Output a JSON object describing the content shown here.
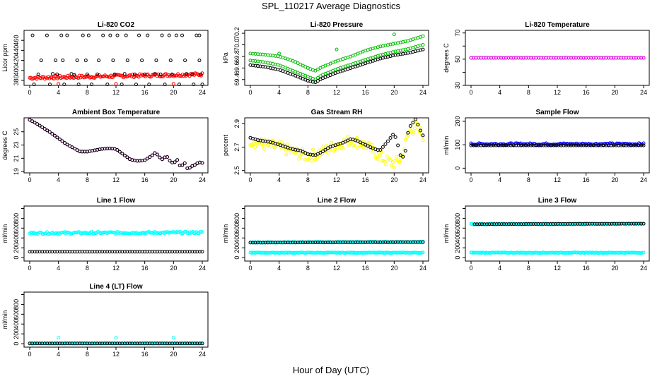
{
  "title": "SPL_110217  Average Diagnostics",
  "xlabel": "Hour of Day (UTC)",
  "chart_data": [
    {
      "type": "scatter",
      "title": "Li-820 CO2",
      "ylabel": "Licor ppm",
      "xlim": [
        0,
        24
      ],
      "ylim": [
        370,
        480
      ],
      "xticks": [
        0,
        4,
        8,
        12,
        16,
        20,
        24
      ],
      "yticks": [
        380,
        400,
        420,
        440,
        460
      ],
      "ytick_labels": [
        "380",
        "400",
        "420",
        "440",
        "460"
      ],
      "series": [
        {
          "name": "line1",
          "color": "#ff0000",
          "kind": "band",
          "x": [
            0,
            24
          ],
          "y": [
            385,
            392
          ],
          "jitter": 3
        },
        {
          "name": "line3-high",
          "color": "#000000",
          "kind": "sparse",
          "x": [
            0.4,
            2.4,
            4.4,
            5.2,
            7.4,
            8.2,
            10.2,
            11.2,
            12.2,
            13.4,
            15.2,
            16.4,
            18.4,
            19.4,
            20.4,
            21.2,
            23.2,
            23.6
          ],
          "y": [
            470,
            470,
            470,
            470,
            470,
            470,
            470,
            470,
            470,
            470,
            470,
            470,
            470,
            470,
            470,
            470,
            470,
            470
          ]
        },
        {
          "name": "line3-mid",
          "color": "#000000",
          "kind": "sparse",
          "x": [
            1.6,
            3.6,
            4.6,
            6.6,
            7.8,
            9.6,
            11.6,
            13.6,
            15.6,
            17.6,
            19.6,
            21.6,
            23.6
          ],
          "y": [
            420,
            420,
            420,
            420,
            420,
            420,
            420,
            420,
            420,
            420,
            420,
            420,
            420
          ]
        },
        {
          "name": "line3-low",
          "color": "#000000",
          "kind": "sparse",
          "x": [
            1.2,
            3.2,
            3.8,
            5.8,
            6.2,
            8.0,
            9.4,
            11.8,
            13.2,
            14.6,
            16.0,
            17.4,
            18.2,
            19.8,
            21.8,
            22.6,
            23.8
          ],
          "y": [
            392,
            393,
            392,
            393,
            391,
            392,
            392,
            392,
            393,
            392,
            392,
            393,
            392,
            392,
            393,
            392,
            392
          ]
        },
        {
          "name": "line4-bottom",
          "color": "#000000",
          "kind": "sparse",
          "x": [
            0.6,
            2.8,
            4.8,
            6.8,
            8.6,
            10.8,
            12.8,
            14.8,
            16.6,
            18.8,
            20.8,
            22.8,
            24
          ],
          "y": [
            372,
            372,
            372,
            372,
            372,
            372,
            372,
            372,
            372,
            372,
            372,
            372,
            372
          ]
        },
        {
          "name": "line4-red",
          "color": "#ff0000",
          "kind": "sparse",
          "x": [
            4.0,
            12.0,
            20.0
          ],
          "y": [
            373,
            373,
            373
          ]
        }
      ]
    },
    {
      "type": "scatter",
      "title": "Li-820 Pressure",
      "ylabel": "kPa",
      "xlim": [
        0,
        24
      ],
      "ylim": [
        69.3,
        70.25
      ],
      "xticks": [
        0,
        4,
        8,
        12,
        16,
        20,
        24
      ],
      "yticks": [
        69.4,
        69.6,
        69.8,
        70.0,
        70.2
      ],
      "ytick_labels": [
        "69.4",
        "69.6",
        "69.8",
        "70.0",
        "70.2"
      ],
      "series": [
        {
          "name": "upper",
          "color": "#00bb00",
          "kind": "curve",
          "x": [
            0,
            2,
            4,
            6,
            8,
            9,
            10,
            12,
            14,
            16,
            18,
            20,
            22,
            24
          ],
          "y": [
            69.85,
            69.83,
            69.8,
            69.72,
            69.6,
            69.55,
            69.62,
            69.72,
            69.8,
            69.9,
            69.97,
            70.02,
            70.07,
            70.15
          ]
        },
        {
          "name": "middle",
          "color": "#00bb00",
          "kind": "curve",
          "x": [
            0,
            2,
            4,
            6,
            8,
            9,
            10,
            12,
            14,
            16,
            18,
            20,
            22,
            24
          ],
          "y": [
            69.73,
            69.7,
            69.65,
            69.55,
            69.45,
            69.4,
            69.48,
            69.58,
            69.66,
            69.74,
            69.82,
            69.88,
            69.93,
            70.0
          ]
        },
        {
          "name": "lower",
          "color": "#000000",
          "kind": "curve",
          "x": [
            0,
            2,
            4,
            6,
            8,
            9,
            10,
            12,
            14,
            16,
            18,
            20,
            22,
            24
          ],
          "y": [
            69.65,
            69.62,
            69.57,
            69.48,
            69.38,
            69.35,
            69.42,
            69.52,
            69.6,
            69.68,
            69.76,
            69.82,
            69.86,
            69.92
          ]
        },
        {
          "name": "outliers",
          "color": "#00bb00",
          "kind": "sparse",
          "x": [
            4.0,
            12.0,
            20.0
          ],
          "y": [
            69.85,
            69.92,
            70.18
          ]
        }
      ]
    },
    {
      "type": "scatter",
      "title": "Li-820 Temperature",
      "ylabel": "degrees C",
      "xlim": [
        0,
        24
      ],
      "ylim": [
        30,
        72
      ],
      "xticks": [
        0,
        4,
        8,
        12,
        16,
        20,
        24
      ],
      "yticks": [
        30,
        40,
        50,
        60,
        70
      ],
      "ytick_labels": [
        "30",
        "",
        "50",
        "",
        "70"
      ],
      "series": [
        {
          "name": "black",
          "color": "#000000",
          "kind": "curve",
          "x": [
            0,
            24
          ],
          "y": [
            51,
            51
          ]
        },
        {
          "name": "magenta",
          "color": "#ff00ff",
          "kind": "curve",
          "x": [
            0,
            24
          ],
          "y": [
            51,
            51
          ]
        }
      ]
    },
    {
      "type": "scatter",
      "title": "Ambient Box Temperature",
      "ylabel": "degrees C",
      "xlim": [
        0,
        24
      ],
      "ylim": [
        18.8,
        27.1
      ],
      "xticks": [
        0,
        4,
        8,
        12,
        16,
        20,
        24
      ],
      "yticks": [
        19,
        21,
        23,
        25
      ],
      "ytick_labels": [
        "19",
        "21",
        "23",
        "25"
      ],
      "series": [
        {
          "name": "magenta",
          "color": "#ff00ff",
          "kind": "curve",
          "x": [
            0,
            1,
            2,
            3,
            4,
            5,
            6,
            7,
            8,
            9,
            10,
            11,
            12,
            13,
            14,
            15,
            16,
            17,
            17.5,
            18,
            18.5,
            19,
            19.5,
            20,
            20.5,
            21,
            21.5,
            22,
            22.5,
            23,
            23.5,
            24
          ],
          "y": [
            26.8,
            26.2,
            25.5,
            24.8,
            24.0,
            23.2,
            22.6,
            22.0,
            22.0,
            22.2,
            22.4,
            22.5,
            22.4,
            21.6,
            20.8,
            20.6,
            20.7,
            21.4,
            21.9,
            21.2,
            20.8,
            21.4,
            20.6,
            20.2,
            20.8,
            19.6,
            20.4,
            19.3,
            19.8,
            20.0,
            20.4,
            20.3
          ]
        },
        {
          "name": "black",
          "color": "#000000",
          "kind": "curve",
          "x": [
            0,
            1,
            2,
            3,
            4,
            5,
            6,
            7,
            8,
            9,
            10,
            11,
            12,
            13,
            14,
            15,
            16,
            17,
            17.5,
            18,
            18.5,
            19,
            19.5,
            20,
            20.5,
            21,
            21.5,
            22,
            22.5,
            23,
            23.5,
            24
          ],
          "y": [
            26.8,
            26.2,
            25.5,
            24.8,
            24.0,
            23.2,
            22.6,
            22.0,
            22.0,
            22.2,
            22.4,
            22.5,
            22.4,
            21.6,
            20.8,
            20.6,
            20.7,
            21.4,
            21.9,
            21.2,
            20.8,
            21.4,
            20.6,
            20.2,
            20.8,
            19.6,
            20.4,
            19.3,
            19.8,
            20.0,
            20.4,
            20.3
          ]
        }
      ]
    },
    {
      "type": "scatter",
      "title": "Gas Stream RH",
      "ylabel": "percent",
      "xlim": [
        0,
        24
      ],
      "ylim": [
        2.48,
        2.95
      ],
      "xticks": [
        0,
        4,
        8,
        12,
        16,
        20,
        24
      ],
      "yticks": [
        2.5,
        2.7,
        2.9
      ],
      "ytick_labels": [
        "2.5",
        "2.7",
        "2.9"
      ],
      "series": [
        {
          "name": "yellow",
          "color": "#ffff00",
          "kind": "band",
          "x": [
            0,
            2,
            4,
            6,
            8,
            10,
            12,
            14,
            16,
            18,
            19,
            20,
            21,
            22,
            23,
            24
          ],
          "y": [
            2.76,
            2.72,
            2.7,
            2.66,
            2.62,
            2.66,
            2.72,
            2.76,
            2.72,
            2.62,
            2.58,
            2.56,
            2.6,
            2.82,
            2.88,
            2.8
          ],
          "jitter": 0.05
        },
        {
          "name": "black",
          "color": "#000000",
          "kind": "curve",
          "x": [
            0,
            1,
            2,
            3,
            4,
            5,
            6,
            7,
            8,
            9,
            10,
            11,
            12,
            13,
            14,
            15,
            16,
            17,
            18,
            19,
            19.5,
            20,
            20.5,
            21,
            21.5,
            22,
            22.5,
            23,
            23.5,
            24
          ],
          "y": [
            2.78,
            2.76,
            2.75,
            2.74,
            2.72,
            2.7,
            2.68,
            2.67,
            2.64,
            2.63,
            2.66,
            2.7,
            2.72,
            2.74,
            2.77,
            2.75,
            2.72,
            2.69,
            2.67,
            2.74,
            2.78,
            2.82,
            2.72,
            2.6,
            2.64,
            2.86,
            2.9,
            2.94,
            2.86,
            2.8
          ]
        }
      ]
    },
    {
      "type": "scatter",
      "title": "Sample Flow",
      "ylabel": "ml/min",
      "xlim": [
        0,
        24
      ],
      "ylim": [
        -20,
        215
      ],
      "xticks": [
        0,
        4,
        8,
        12,
        16,
        20,
        24
      ],
      "yticks": [
        0,
        100,
        200
      ],
      "ytick_labels": [
        "0",
        "100",
        "200"
      ],
      "series": [
        {
          "name": "blue",
          "color": "#0000ff",
          "kind": "band",
          "x": [
            0,
            24
          ],
          "y": [
            103,
            103
          ],
          "jitter": 4
        },
        {
          "name": "black",
          "color": "#000000",
          "kind": "curve",
          "x": [
            0,
            24
          ],
          "y": [
            97,
            97
          ]
        }
      ]
    },
    {
      "type": "scatter",
      "title": "Line 1 Flow",
      "ylabel": "ml/min",
      "xlim": [
        0,
        24
      ],
      "ylim": [
        -70,
        1050
      ],
      "xticks": [
        0,
        4,
        8,
        12,
        16,
        20,
        24
      ],
      "yticks": [
        0,
        200,
        400,
        600,
        800,
        1000
      ],
      "ytick_labels": [
        "0",
        "200",
        "400",
        "600",
        "800",
        ""
      ],
      "series": [
        {
          "name": "cyan",
          "color": "#00ffff",
          "kind": "band",
          "x": [
            0,
            24
          ],
          "y": [
            500,
            510
          ],
          "jitter": 20
        },
        {
          "name": "black",
          "color": "#000000",
          "kind": "curve",
          "x": [
            0,
            24
          ],
          "y": [
            120,
            120
          ]
        }
      ]
    },
    {
      "type": "scatter",
      "title": "Line 2 Flow",
      "ylabel": "ml/min",
      "xlim": [
        0,
        24
      ],
      "ylim": [
        -70,
        1050
      ],
      "xticks": [
        0,
        4,
        8,
        12,
        16,
        20,
        24
      ],
      "yticks": [
        0,
        200,
        400,
        600,
        800,
        1000
      ],
      "ytick_labels": [
        "0",
        "200",
        "400",
        "600",
        "800",
        ""
      ],
      "series": [
        {
          "name": "cyan-high",
          "color": "#00ffff",
          "kind": "band",
          "x": [
            0,
            24
          ],
          "y": [
            310,
            320
          ],
          "jitter": 8
        },
        {
          "name": "cyan-low",
          "color": "#00ffff",
          "kind": "band",
          "x": [
            0,
            24
          ],
          "y": [
            100,
            100
          ],
          "jitter": 6
        },
        {
          "name": "black",
          "color": "#000000",
          "kind": "curve",
          "x": [
            0,
            24
          ],
          "y": [
            305,
            315
          ]
        }
      ]
    },
    {
      "type": "scatter",
      "title": "Line 3 Flow",
      "ylabel": "ml/min",
      "xlim": [
        0,
        24
      ],
      "ylim": [
        -70,
        1050
      ],
      "xticks": [
        0,
        4,
        8,
        12,
        16,
        20,
        24
      ],
      "yticks": [
        0,
        200,
        400,
        600,
        800,
        1000
      ],
      "ytick_labels": [
        "0",
        "200",
        "400",
        "600",
        "800",
        ""
      ],
      "series": [
        {
          "name": "cyan-high",
          "color": "#00ffff",
          "kind": "band",
          "x": [
            0,
            24
          ],
          "y": [
            680,
            690
          ],
          "jitter": 8
        },
        {
          "name": "cyan-low",
          "color": "#00ffff",
          "kind": "band",
          "x": [
            0,
            24
          ],
          "y": [
            100,
            100
          ],
          "jitter": 6
        },
        {
          "name": "black",
          "color": "#000000",
          "kind": "curve",
          "x": [
            0.5,
            24
          ],
          "y": [
            680,
            690
          ]
        }
      ]
    },
    {
      "type": "scatter",
      "title": "Line 4 (LT) Flow",
      "ylabel": "ml/min",
      "xlim": [
        0,
        24
      ],
      "ylim": [
        -70,
        1050
      ],
      "xticks": [
        0,
        4,
        8,
        12,
        16,
        20,
        24
      ],
      "yticks": [
        0,
        200,
        400,
        600,
        800,
        1000
      ],
      "ytick_labels": [
        "0",
        "200",
        "400",
        "600",
        "800",
        ""
      ],
      "series": [
        {
          "name": "cyan",
          "color": "#00ffff",
          "kind": "band",
          "x": [
            0,
            24
          ],
          "y": [
            5,
            5
          ],
          "jitter": 3
        },
        {
          "name": "black",
          "color": "#000000",
          "kind": "curve",
          "x": [
            0,
            24
          ],
          "y": [
            5,
            5
          ]
        },
        {
          "name": "cyan-outliers",
          "color": "#00ffff",
          "kind": "sparse",
          "x": [
            4.0,
            12.0,
            20.0
          ],
          "y": [
            120,
            120,
            120
          ]
        }
      ]
    }
  ]
}
